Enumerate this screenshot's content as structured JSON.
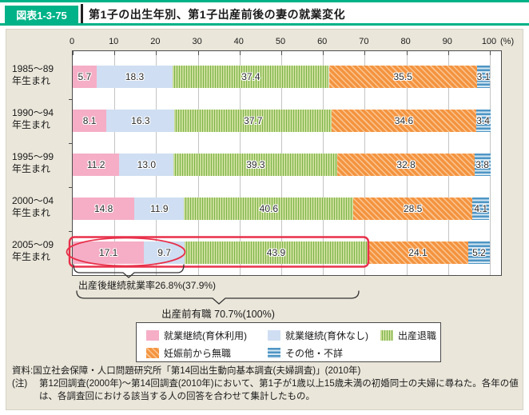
{
  "header": {
    "badge": "図表1-3-75",
    "title": "第1子の出生年別、第1子出産前後の妻の就業変化"
  },
  "chart_data": {
    "type": "bar",
    "orientation": "horizontal",
    "stacked": true,
    "title": "第1子の出生年別、第1子出産前後の妻の就業変化",
    "x_axis": {
      "min": 0,
      "max": 100,
      "tick_step": 10,
      "unit": "(%)"
    },
    "categories": [
      "1985〜89",
      "1990〜94",
      "1995〜99",
      "2000〜04",
      "2005〜09"
    ],
    "category_suffix": "年生まれ",
    "series": [
      {
        "name": "就業継続(育休利用)",
        "pattern": "pink-solid",
        "values": [
          5.7,
          8.1,
          11.2,
          14.8,
          17.1
        ]
      },
      {
        "name": "就業継続(育休なし)",
        "pattern": "lightblue-solid",
        "values": [
          18.3,
          16.3,
          13.0,
          11.9,
          9.7
        ]
      },
      {
        "name": "出産退職",
        "pattern": "green-vertical-stripes",
        "values": [
          37.4,
          37.7,
          39.3,
          40.6,
          43.9
        ]
      },
      {
        "name": "妊娠前から無職",
        "pattern": "orange-diagonal-stripes",
        "values": [
          35.5,
          34.6,
          32.8,
          28.5,
          24.1
        ]
      },
      {
        "name": "その他・不詳",
        "pattern": "blue-horizontal-stripes",
        "values": [
          3.1,
          3.4,
          3.8,
          4.1,
          5.2
        ]
      }
    ],
    "annotations": {
      "post_birth_continuation": "出産後継続就業率26.8%(37.9%)",
      "pre_birth_employed": "出産前有職 70.7%(100%)"
    },
    "highlight": {
      "row": "2005〜09",
      "circled_span_pct": 26.8,
      "boxed_span_pct": 70.7
    },
    "grid": true,
    "legend_position": "bottom"
  },
  "legend": {
    "items": [
      "就業継続(育休利用)",
      "就業継続(育休なし)",
      "出産退職",
      "妊娠前から無職",
      "その他・不詳"
    ]
  },
  "footer": {
    "source": "資料:国立社会保障・人口問題研究所「第14回出生動向基本調査(夫婦調査)」(2010年)",
    "note_label": "(注)",
    "note_text": "第12回調査(2000年)〜第14回調査(2010年)において、第1子が1歳以上15歳未満の初婚同士の夫婦に尋ねた。各年の値は、各調査回における該当する人の回答を合わせて集計したもの。"
  },
  "colors": {
    "header_green": "#00b287",
    "panel_beige": "#eae6da",
    "highlight_red": "#e8304a",
    "pink": "#f5aec6",
    "light_blue": "#cfdef2",
    "green_dark": "#7cb44a",
    "green_light": "#cadd98",
    "orange": "#f49440",
    "orange_light": "#fac795",
    "blue": "#4e95c4",
    "blue_light": "#d3e6f2"
  }
}
